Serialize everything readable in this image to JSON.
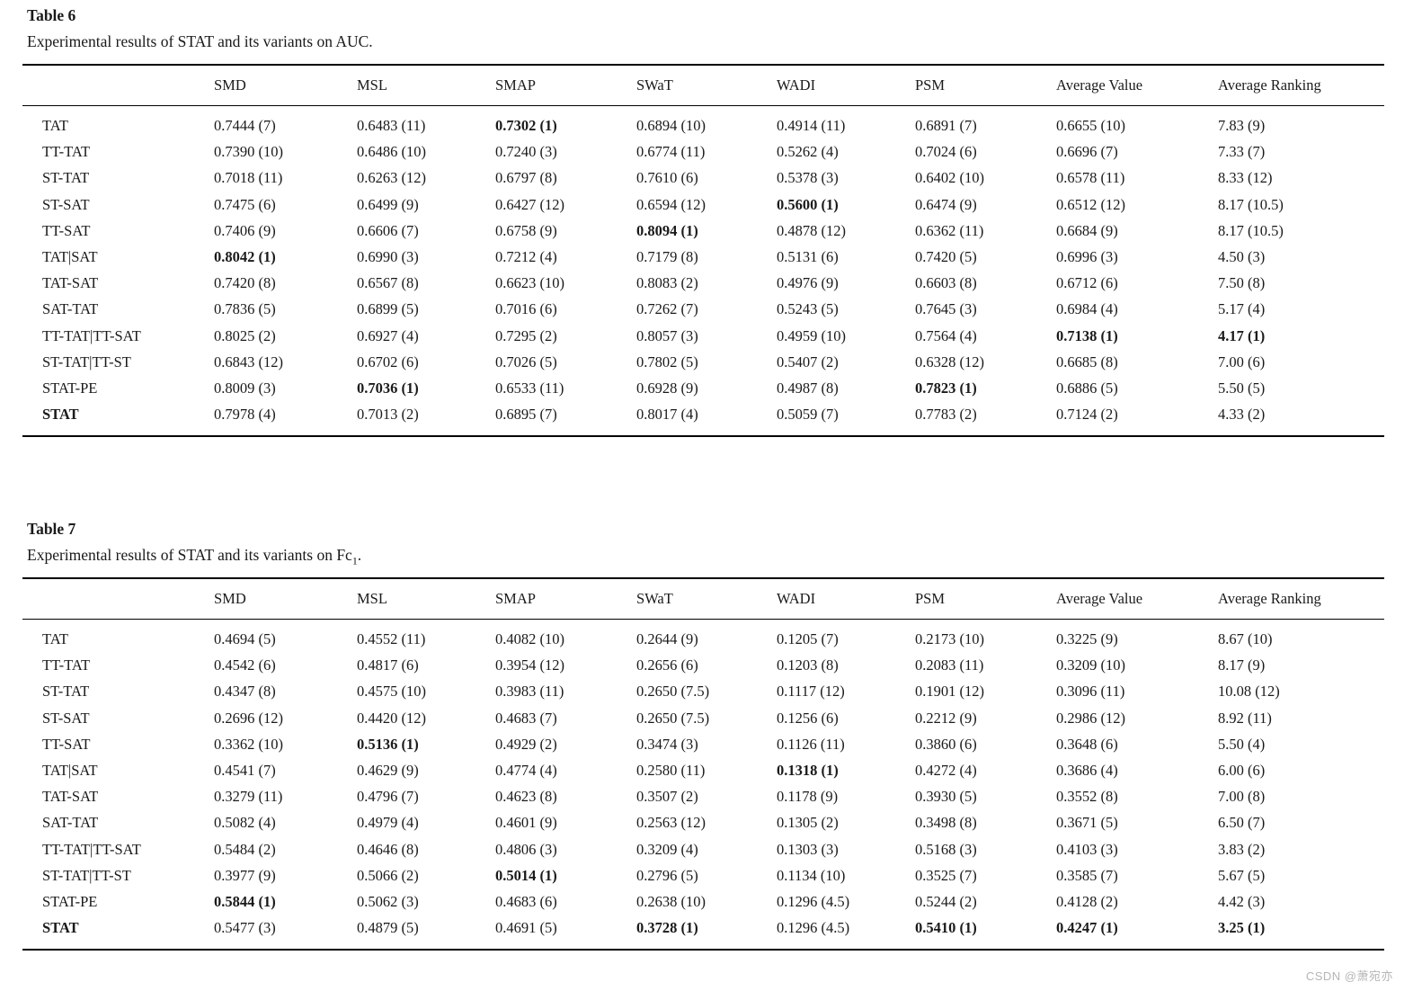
{
  "watermark": "CSDN @萧宛亦",
  "tables": [
    {
      "label": "Table 6",
      "caption": {
        "text": "Experimental results of STAT and its variants on AUC.",
        "sub": "",
        "tail": ""
      },
      "columns": [
        "",
        "SMD",
        "MSL",
        "SMAP",
        "SWaT",
        "WADI",
        "PSM",
        "Average Value",
        "Average Ranking"
      ],
      "rows": [
        {
          "name": "TAT",
          "name_bold": false,
          "values": [
            "0.7444 (7)",
            "0.6483 (11)",
            "0.7302 (1)",
            "0.6894 (10)",
            "0.4914 (11)",
            "0.6891 (7)",
            "0.6655 (10)",
            "7.83 (9)"
          ],
          "bold": [
            2
          ]
        },
        {
          "name": "TT-TAT",
          "name_bold": false,
          "values": [
            "0.7390 (10)",
            "0.6486 (10)",
            "0.7240 (3)",
            "0.6774 (11)",
            "0.5262 (4)",
            "0.7024 (6)",
            "0.6696 (7)",
            "7.33 (7)"
          ],
          "bold": []
        },
        {
          "name": "ST-TAT",
          "name_bold": false,
          "values": [
            "0.7018 (11)",
            "0.6263 (12)",
            "0.6797 (8)",
            "0.7610 (6)",
            "0.5378 (3)",
            "0.6402 (10)",
            "0.6578 (11)",
            "8.33 (12)"
          ],
          "bold": []
        },
        {
          "name": "ST-SAT",
          "name_bold": false,
          "values": [
            "0.7475 (6)",
            "0.6499 (9)",
            "0.6427 (12)",
            "0.6594 (12)",
            "0.5600 (1)",
            "0.6474 (9)",
            "0.6512 (12)",
            "8.17 (10.5)"
          ],
          "bold": [
            4
          ]
        },
        {
          "name": "TT-SAT",
          "name_bold": false,
          "values": [
            "0.7406 (9)",
            "0.6606 (7)",
            "0.6758 (9)",
            "0.8094 (1)",
            "0.4878 (12)",
            "0.6362 (11)",
            "0.6684 (9)",
            "8.17 (10.5)"
          ],
          "bold": [
            3
          ]
        },
        {
          "name": "TAT|SAT",
          "name_bold": false,
          "values": [
            "0.8042 (1)",
            "0.6990 (3)",
            "0.7212 (4)",
            "0.7179 (8)",
            "0.5131 (6)",
            "0.7420 (5)",
            "0.6996 (3)",
            "4.50 (3)"
          ],
          "bold": [
            0
          ]
        },
        {
          "name": "TAT-SAT",
          "name_bold": false,
          "values": [
            "0.7420 (8)",
            "0.6567 (8)",
            "0.6623 (10)",
            "0.8083 (2)",
            "0.4976 (9)",
            "0.6603 (8)",
            "0.6712 (6)",
            "7.50 (8)"
          ],
          "bold": []
        },
        {
          "name": "SAT-TAT",
          "name_bold": false,
          "values": [
            "0.7836 (5)",
            "0.6899 (5)",
            "0.7016 (6)",
            "0.7262 (7)",
            "0.5243 (5)",
            "0.7645 (3)",
            "0.6984 (4)",
            "5.17 (4)"
          ],
          "bold": []
        },
        {
          "name": "TT-TAT|TT-SAT",
          "name_bold": false,
          "values": [
            "0.8025 (2)",
            "0.6927 (4)",
            "0.7295 (2)",
            "0.8057 (3)",
            "0.4959 (10)",
            "0.7564 (4)",
            "0.7138 (1)",
            "4.17 (1)"
          ],
          "bold": [
            6,
            7
          ]
        },
        {
          "name": "ST-TAT|TT-ST",
          "name_bold": false,
          "values": [
            "0.6843 (12)",
            "0.6702 (6)",
            "0.7026 (5)",
            "0.7802 (5)",
            "0.5407 (2)",
            "0.6328 (12)",
            "0.6685 (8)",
            "7.00 (6)"
          ],
          "bold": []
        },
        {
          "name": "STAT-PE",
          "name_bold": false,
          "values": [
            "0.8009 (3)",
            "0.7036 (1)",
            "0.6533 (11)",
            "0.6928 (9)",
            "0.4987 (8)",
            "0.7823 (1)",
            "0.6886 (5)",
            "5.50 (5)"
          ],
          "bold": [
            1,
            5
          ]
        },
        {
          "name": "STAT",
          "name_bold": true,
          "values": [
            "0.7978 (4)",
            "0.7013 (2)",
            "0.6895 (7)",
            "0.8017 (4)",
            "0.5059 (7)",
            "0.7783 (2)",
            "0.7124 (2)",
            "4.33 (2)"
          ],
          "bold": []
        }
      ]
    },
    {
      "label": "Table 7",
      "caption": {
        "text": "Experimental results of STAT and its variants on Fc",
        "sub": "1",
        "tail": "."
      },
      "columns": [
        "",
        "SMD",
        "MSL",
        "SMAP",
        "SWaT",
        "WADI",
        "PSM",
        "Average Value",
        "Average Ranking"
      ],
      "rows": [
        {
          "name": "TAT",
          "name_bold": false,
          "values": [
            "0.4694 (5)",
            "0.4552 (11)",
            "0.4082 (10)",
            "0.2644 (9)",
            "0.1205 (7)",
            "0.2173 (10)",
            "0.3225 (9)",
            "8.67 (10)"
          ],
          "bold": []
        },
        {
          "name": "TT-TAT",
          "name_bold": false,
          "values": [
            "0.4542 (6)",
            "0.4817 (6)",
            "0.3954 (12)",
            "0.2656 (6)",
            "0.1203 (8)",
            "0.2083 (11)",
            "0.3209 (10)",
            "8.17 (9)"
          ],
          "bold": []
        },
        {
          "name": "ST-TAT",
          "name_bold": false,
          "values": [
            "0.4347 (8)",
            "0.4575 (10)",
            "0.3983 (11)",
            "0.2650 (7.5)",
            "0.1117 (12)",
            "0.1901 (12)",
            "0.3096 (11)",
            "10.08 (12)"
          ],
          "bold": []
        },
        {
          "name": "ST-SAT",
          "name_bold": false,
          "values": [
            "0.2696 (12)",
            "0.4420 (12)",
            "0.4683 (7)",
            "0.2650 (7.5)",
            "0.1256 (6)",
            "0.2212 (9)",
            "0.2986 (12)",
            "8.92 (11)"
          ],
          "bold": []
        },
        {
          "name": "TT-SAT",
          "name_bold": false,
          "values": [
            "0.3362 (10)",
            "0.5136 (1)",
            "0.4929 (2)",
            "0.3474 (3)",
            "0.1126 (11)",
            "0.3860 (6)",
            "0.3648 (6)",
            "5.50 (4)"
          ],
          "bold": [
            1
          ]
        },
        {
          "name": "TAT|SAT",
          "name_bold": false,
          "values": [
            "0.4541 (7)",
            "0.4629 (9)",
            "0.4774 (4)",
            "0.2580 (11)",
            "0.1318 (1)",
            "0.4272 (4)",
            "0.3686 (4)",
            "6.00 (6)"
          ],
          "bold": [
            4
          ]
        },
        {
          "name": "TAT-SAT",
          "name_bold": false,
          "values": [
            "0.3279 (11)",
            "0.4796 (7)",
            "0.4623 (8)",
            "0.3507 (2)",
            "0.1178 (9)",
            "0.3930 (5)",
            "0.3552 (8)",
            "7.00 (8)"
          ],
          "bold": []
        },
        {
          "name": "SAT-TAT",
          "name_bold": false,
          "values": [
            "0.5082 (4)",
            "0.4979 (4)",
            "0.4601 (9)",
            "0.2563 (12)",
            "0.1305 (2)",
            "0.3498 (8)",
            "0.3671 (5)",
            "6.50 (7)"
          ],
          "bold": []
        },
        {
          "name": "TT-TAT|TT-SAT",
          "name_bold": false,
          "values": [
            "0.5484 (2)",
            "0.4646 (8)",
            "0.4806 (3)",
            "0.3209 (4)",
            "0.1303 (3)",
            "0.5168 (3)",
            "0.4103 (3)",
            "3.83 (2)"
          ],
          "bold": []
        },
        {
          "name": "ST-TAT|TT-ST",
          "name_bold": false,
          "values": [
            "0.3977 (9)",
            "0.5066 (2)",
            "0.5014 (1)",
            "0.2796 (5)",
            "0.1134 (10)",
            "0.3525 (7)",
            "0.3585 (7)",
            "5.67 (5)"
          ],
          "bold": [
            2
          ]
        },
        {
          "name": "STAT-PE",
          "name_bold": false,
          "values": [
            "0.5844 (1)",
            "0.5062 (3)",
            "0.4683 (6)",
            "0.2638 (10)",
            "0.1296 (4.5)",
            "0.5244 (2)",
            "0.4128 (2)",
            "4.42 (3)"
          ],
          "bold": [
            0
          ]
        },
        {
          "name": "STAT",
          "name_bold": true,
          "values": [
            "0.5477 (3)",
            "0.4879 (5)",
            "0.4691 (5)",
            "0.3728 (1)",
            "0.1296 (4.5)",
            "0.5410 (1)",
            "0.4247 (1)",
            "3.25 (1)"
          ],
          "bold": [
            3,
            5,
            6,
            7
          ]
        }
      ]
    }
  ]
}
